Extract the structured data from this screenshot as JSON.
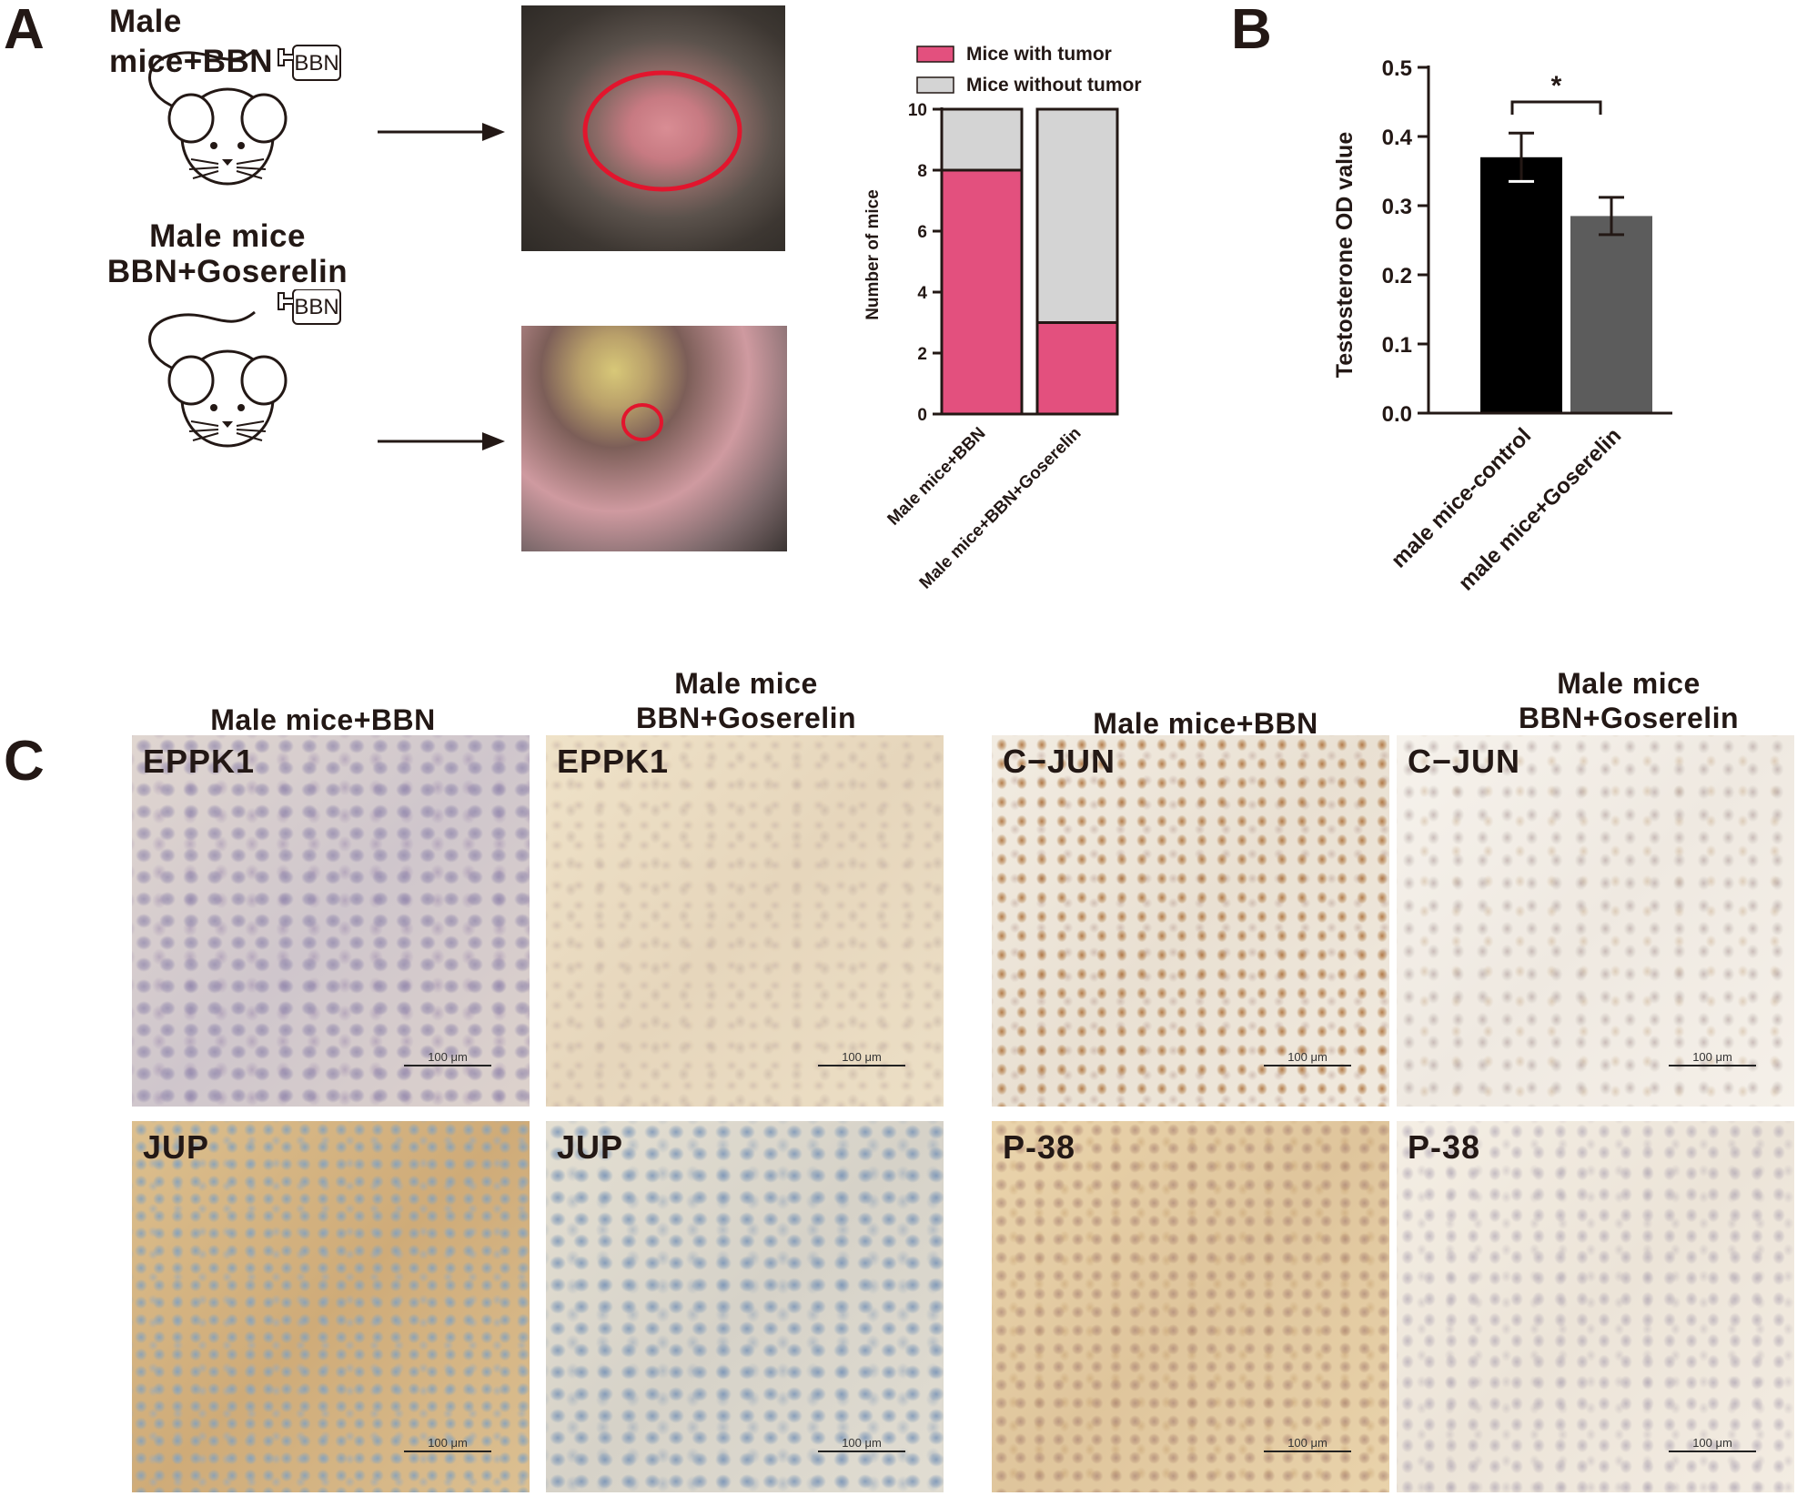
{
  "panels": {
    "a": "A",
    "b": "B",
    "c": "C"
  },
  "panel_a": {
    "group1_title": "Male mice+BBN",
    "group2_title_line1": "Male mice",
    "group2_title_line2": "BBN+Goserelin",
    "bottle_label": "BBN"
  },
  "colors": {
    "tumor": "#e3507e",
    "no_tumor": "#d4d4d4",
    "control_bar": "#000000",
    "goserelin_bar": "#5c5c5c"
  },
  "chart_data": [
    {
      "type": "bar",
      "stacked": true,
      "categories": [
        "Male mice+BBN",
        "Male mice+BBN+Goserelin"
      ],
      "series": [
        {
          "name": "Mice with tumor",
          "values": [
            8,
            3
          ]
        },
        {
          "name": "Mice without tumor",
          "values": [
            2,
            7
          ]
        }
      ],
      "ylabel": "Number of mice",
      "ylim": [
        0,
        10
      ],
      "yticks": [
        0,
        2,
        4,
        6,
        8,
        10
      ],
      "legend": "top"
    },
    {
      "type": "bar",
      "categories": [
        "male mice-control",
        "male mice+Goserelin"
      ],
      "values": [
        0.37,
        0.285
      ],
      "errors": [
        0.035,
        0.027
      ],
      "ylabel": "Testosterone  OD value",
      "ylim": [
        0,
        0.5
      ],
      "yticks": [
        "0.0",
        "0.1",
        "0.2",
        "0.3",
        "0.4",
        "0.5"
      ],
      "significance": "*"
    }
  ],
  "panel_c": {
    "col_titles": [
      {
        "line1": "Male mice+BBN",
        "line2": ""
      },
      {
        "line1": "Male mice",
        "line2": "BBN+Goserelin"
      },
      {
        "line1": "Male mice+BBN",
        "line2": ""
      },
      {
        "line1": "Male mice",
        "line2": "BBN+Goserelin"
      }
    ],
    "markers": [
      "EPPK1",
      "EPPK1",
      "C−JUN",
      "C−JUN",
      "JUP",
      "JUP",
      "P-38",
      "P-38"
    ],
    "scale_bar": "100 μm"
  }
}
